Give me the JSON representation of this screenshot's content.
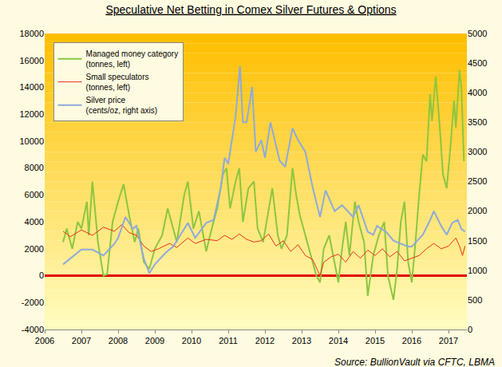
{
  "chart_data": {
    "type": "line",
    "title": "Speculative Net Betting in Comex Silver Futures & Options",
    "annotations": [
      "Source: BullionVault via CFTC, LBMA"
    ],
    "xlim": [
      2006,
      2017.5
    ],
    "xticks": [
      2006,
      2007,
      2008,
      2009,
      2010,
      2011,
      2012,
      2013,
      2014,
      2015,
      2016,
      2017
    ],
    "ylim": [
      -4000,
      18000
    ],
    "yticks": [
      -4000,
      -2000,
      0,
      2000,
      4000,
      6000,
      8000,
      10000,
      12000,
      14000,
      16000,
      18000
    ],
    "y2lim": [
      0,
      5000
    ],
    "y2ticks": [
      0,
      500,
      1000,
      1500,
      2000,
      2500,
      3000,
      3500,
      4000,
      4500,
      5000
    ],
    "grid": false,
    "legend": "top left",
    "series": [
      {
        "name": "Managed money category (tonnes, left)",
        "color": "#8dc63f",
        "axis": "y",
        "x": [
          2006.5,
          2006.6,
          2006.75,
          2006.9,
          2007.0,
          2007.15,
          2007.2,
          2007.3,
          2007.45,
          2007.6,
          2007.7,
          2007.85,
          2008.0,
          2008.15,
          2008.3,
          2008.45,
          2008.55,
          2008.7,
          2008.85,
          2009.0,
          2009.2,
          2009.35,
          2009.45,
          2009.6,
          2009.8,
          2009.9,
          2010.05,
          2010.2,
          2010.4,
          2010.55,
          2010.7,
          2010.85,
          2010.95,
          2011.05,
          2011.2,
          2011.3,
          2011.4,
          2011.55,
          2011.7,
          2011.8,
          2011.95,
          2012.1,
          2012.2,
          2012.35,
          2012.45,
          2012.6,
          2012.75,
          2012.85,
          2012.95,
          2013.1,
          2013.25,
          2013.4,
          2013.5,
          2013.6,
          2013.75,
          2013.9,
          2014.0,
          2014.1,
          2014.2,
          2014.3,
          2014.45,
          2014.55,
          2014.7,
          2014.8,
          2014.95,
          2015.1,
          2015.25,
          2015.35,
          2015.5,
          2015.6,
          2015.7,
          2015.8,
          2015.9,
          2016.0,
          2016.1,
          2016.2,
          2016.3,
          2016.4,
          2016.5,
          2016.55,
          2016.65,
          2016.75,
          2016.85,
          2016.95,
          2017.05,
          2017.15,
          2017.2,
          2017.3,
          2017.35,
          2017.42
        ],
        "values": [
          2500,
          3500,
          2000,
          4000,
          3500,
          5500,
          3000,
          7000,
          2500,
          0,
          100,
          4000,
          5500,
          6800,
          4500,
          2500,
          3500,
          1000,
          500,
          2000,
          3000,
          5000,
          4000,
          2500,
          6000,
          7000,
          3500,
          4800,
          1800,
          3500,
          5000,
          7500,
          8000,
          5000,
          7000,
          8000,
          4000,
          6500,
          7000,
          3500,
          2500,
          5000,
          6500,
          3000,
          2000,
          3000,
          8000,
          6000,
          4500,
          3000,
          1500,
          0,
          -500,
          2000,
          3000,
          1000,
          -500,
          2000,
          4000,
          1500,
          5500,
          4000,
          2500,
          -1500,
          1500,
          3000,
          4000,
          0,
          -1800,
          500,
          4000,
          5500,
          1000,
          -500,
          2500,
          6000,
          9000,
          8500,
          13500,
          11500,
          14800,
          11500,
          7500,
          6500,
          9500,
          13000,
          11000,
          15300,
          14000,
          8500
        ]
      },
      {
        "name": "Small speculators (tonnes, left)",
        "color": "#e8311a",
        "axis": "y",
        "x": [
          2006.5,
          2006.7,
          2007.0,
          2007.3,
          2007.6,
          2007.9,
          2008.1,
          2008.3,
          2008.5,
          2008.7,
          2008.9,
          2009.1,
          2009.4,
          2009.6,
          2009.9,
          2010.1,
          2010.4,
          2010.7,
          2010.9,
          2011.1,
          2011.3,
          2011.5,
          2011.7,
          2011.9,
          2012.1,
          2012.3,
          2012.5,
          2012.7,
          2012.9,
          2013.1,
          2013.3,
          2013.5,
          2013.6,
          2013.8,
          2014.0,
          2014.2,
          2014.4,
          2014.6,
          2014.8,
          2015.0,
          2015.2,
          2015.4,
          2015.6,
          2015.8,
          2016.0,
          2016.2,
          2016.4,
          2016.6,
          2016.8,
          2017.0,
          2017.2,
          2017.3,
          2017.38,
          2017.45
        ],
        "values": [
          3300,
          2900,
          3400,
          3000,
          3600,
          3300,
          3800,
          3200,
          3000,
          2200,
          1800,
          2000,
          2400,
          2100,
          2800,
          2400,
          2700,
          2600,
          3000,
          2700,
          3100,
          2700,
          2500,
          2600,
          3100,
          2200,
          2600,
          1800,
          2300,
          1500,
          1200,
          0,
          1000,
          1400,
          1600,
          1000,
          1800,
          1300,
          1900,
          1500,
          2000,
          1400,
          1800,
          1100,
          1300,
          1500,
          2000,
          2400,
          2000,
          2200,
          2800,
          2200,
          1500,
          2200
        ]
      },
      {
        "name": "Silver price (cents/oz, right axis)",
        "color": "#8faadc",
        "axis": "y2",
        "x": [
          2006.5,
          2006.6,
          2006.9,
          2007.0,
          2007.3,
          2007.6,
          2007.9,
          2008.0,
          2008.2,
          2008.4,
          2008.5,
          2008.7,
          2008.85,
          2009.0,
          2009.3,
          2009.5,
          2009.9,
          2010.1,
          2010.4,
          2010.6,
          2010.8,
          2010.9,
          2011.0,
          2011.2,
          2011.32,
          2011.4,
          2011.5,
          2011.65,
          2011.75,
          2011.9,
          2012.0,
          2012.15,
          2012.4,
          2012.55,
          2012.75,
          2012.9,
          2013.1,
          2013.3,
          2013.5,
          2013.65,
          2013.9,
          2014.1,
          2014.4,
          2014.55,
          2014.8,
          2014.95,
          2015.05,
          2015.3,
          2015.5,
          2015.9,
          2016.0,
          2016.3,
          2016.5,
          2016.6,
          2016.8,
          2016.95,
          2017.1,
          2017.25,
          2017.35,
          2017.45
        ],
        "values": [
          1100,
          1150,
          1300,
          1350,
          1350,
          1250,
          1450,
          1550,
          1900,
          1700,
          1750,
          1200,
          950,
          1100,
          1300,
          1400,
          1800,
          1550,
          1800,
          1850,
          2400,
          2900,
          2800,
          3600,
          4450,
          3500,
          3500,
          4100,
          3000,
          3200,
          2900,
          3500,
          2850,
          2750,
          3400,
          3200,
          3000,
          2400,
          1900,
          2350,
          2000,
          2100,
          1900,
          2100,
          1650,
          1600,
          1750,
          1650,
          1500,
          1400,
          1400,
          1600,
          1850,
          2000,
          1750,
          1600,
          1800,
          1850,
          1700,
          1650
        ]
      }
    ]
  }
}
